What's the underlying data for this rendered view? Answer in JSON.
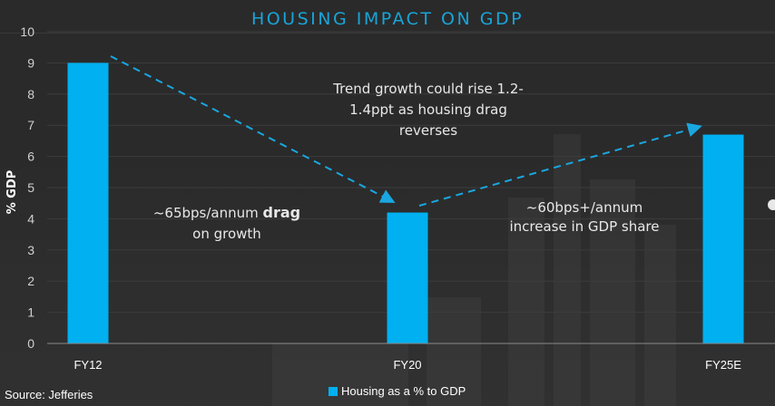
{
  "colors": {
    "bar": "#00b0f0",
    "title": "#19a4d8",
    "arrow": "#1aa7e0",
    "background": "#2a2a2a"
  },
  "source": "Source: Jefferies",
  "chart_data": {
    "type": "bar",
    "title": "HOUSING IMPACT ON GDP",
    "xlabel": "",
    "ylabel": "% GDP",
    "categories": [
      "FY12",
      "FY20",
      "FY25E"
    ],
    "series": [
      {
        "name": "Housing as a % to GDP",
        "values": [
          9.0,
          4.2,
          6.7
        ]
      }
    ],
    "ylim": [
      0,
      10
    ],
    "yticks": [
      0,
      1,
      2,
      3,
      4,
      5,
      6,
      7,
      8,
      9,
      10
    ],
    "grid": true,
    "legend": {
      "position": "bottom-center",
      "entries": [
        "Housing as a % to GDP"
      ]
    },
    "annotations": [
      {
        "id": "trend",
        "lines": [
          "Trend growth could rise 1.2-",
          "1.4ppt as housing drag",
          "reverses"
        ]
      },
      {
        "id": "drag",
        "lines": [
          "~65bps/annum drag",
          "on growth"
        ],
        "bold_word": "drag"
      },
      {
        "id": "increase",
        "lines": [
          "~60bps+/annum",
          "increase in GDP share"
        ]
      }
    ],
    "arrows": [
      {
        "from": "FY12",
        "to": "FY20",
        "style": "dashed",
        "direction": "down"
      },
      {
        "from": "FY20",
        "to": "FY25E",
        "style": "dashed",
        "direction": "up"
      }
    ]
  }
}
